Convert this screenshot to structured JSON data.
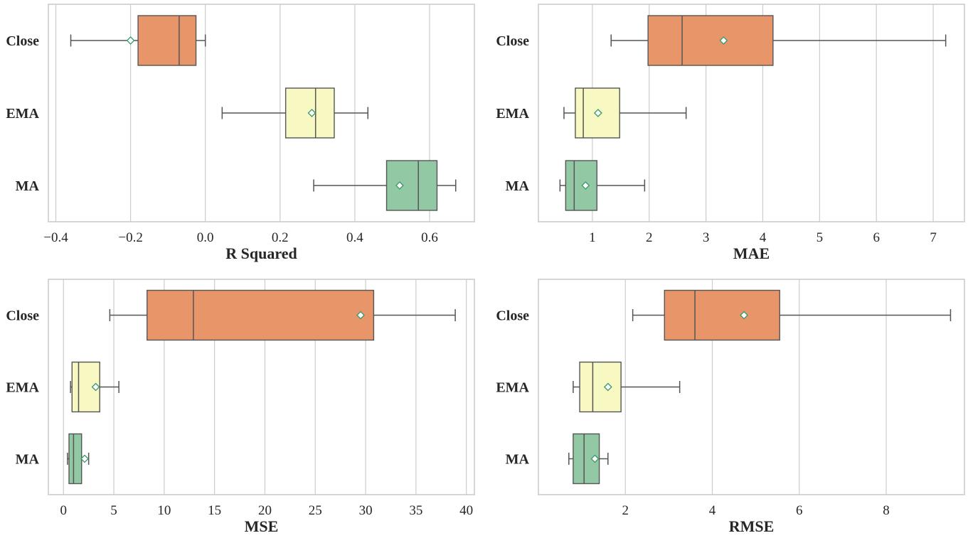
{
  "categories": [
    "Close",
    "EMA",
    "MA"
  ],
  "colors": {
    "Close": "#e8956a",
    "EMA": "#f7f8c2",
    "MA": "#92c9a4",
    "mean_edge": "#3a9a6a",
    "line": "#555555",
    "grid": "#cccccc"
  },
  "chart_data": [
    {
      "type": "box",
      "orientation": "horizontal",
      "xlabel": "R Squared",
      "xlim": [
        -0.42,
        0.72
      ],
      "ticks": [
        -0.4,
        -0.2,
        0.0,
        0.2,
        0.4,
        0.6
      ],
      "tick_labels": [
        "−0.4",
        "−0.2",
        "0.0",
        "0.2",
        "0.4",
        "0.6"
      ],
      "series": [
        {
          "name": "Close",
          "min": -0.36,
          "q1": -0.18,
          "median": -0.07,
          "q3": -0.025,
          "max": 0.0,
          "mean": -0.2
        },
        {
          "name": "EMA",
          "min": 0.045,
          "q1": 0.215,
          "median": 0.295,
          "q3": 0.345,
          "max": 0.435,
          "mean": 0.285
        },
        {
          "name": "MA",
          "min": 0.29,
          "q1": 0.485,
          "median": 0.57,
          "q3": 0.62,
          "max": 0.67,
          "mean": 0.52
        }
      ]
    },
    {
      "type": "box",
      "orientation": "horizontal",
      "xlabel": "MAE",
      "xlim": [
        0.05,
        7.55
      ],
      "ticks": [
        1,
        2,
        3,
        4,
        5,
        6,
        7
      ],
      "tick_labels": [
        "1",
        "2",
        "3",
        "4",
        "5",
        "6",
        "7"
      ],
      "series": [
        {
          "name": "Close",
          "min": 1.33,
          "q1": 1.98,
          "median": 2.58,
          "q3": 4.18,
          "max": 7.22,
          "mean": 3.31
        },
        {
          "name": "EMA",
          "min": 0.5,
          "q1": 0.7,
          "median": 0.84,
          "q3": 1.48,
          "max": 2.65,
          "mean": 1.1
        },
        {
          "name": "MA",
          "min": 0.43,
          "q1": 0.53,
          "median": 0.68,
          "q3": 1.08,
          "max": 1.92,
          "mean": 0.88
        }
      ]
    },
    {
      "type": "box",
      "orientation": "horizontal",
      "xlabel": "MSE",
      "xlim": [
        -1.5,
        40.8
      ],
      "ticks": [
        0,
        5,
        10,
        15,
        20,
        25,
        30,
        35,
        40
      ],
      "tick_labels": [
        "0",
        "5",
        "10",
        "15",
        "20",
        "25",
        "30",
        "35",
        "40"
      ],
      "series": [
        {
          "name": "Close",
          "min": 4.6,
          "q1": 8.3,
          "median": 12.9,
          "q3": 30.8,
          "max": 38.9,
          "mean": 29.5
        },
        {
          "name": "EMA",
          "min": 0.7,
          "q1": 0.85,
          "median": 1.5,
          "q3": 3.6,
          "max": 5.5,
          "mean": 3.2
        },
        {
          "name": "MA",
          "min": 0.4,
          "q1": 0.55,
          "median": 1.0,
          "q3": 1.8,
          "max": 2.5,
          "mean": 2.1
        }
      ]
    },
    {
      "type": "box",
      "orientation": "horizontal",
      "xlabel": "RMSE",
      "xlim": [
        0.0,
        9.8
      ],
      "ticks": [
        2,
        4,
        6,
        8
      ],
      "tick_labels": [
        "2",
        "4",
        "6",
        "8"
      ],
      "series": [
        {
          "name": "Close",
          "min": 2.17,
          "q1": 2.9,
          "median": 3.6,
          "q3": 5.55,
          "max": 9.48,
          "mean": 4.73
        },
        {
          "name": "EMA",
          "min": 0.8,
          "q1": 0.95,
          "median": 1.25,
          "q3": 1.9,
          "max": 3.25,
          "mean": 1.6
        },
        {
          "name": "MA",
          "min": 0.7,
          "q1": 0.8,
          "median": 1.05,
          "q3": 1.4,
          "max": 1.6,
          "mean": 1.3
        }
      ]
    }
  ]
}
